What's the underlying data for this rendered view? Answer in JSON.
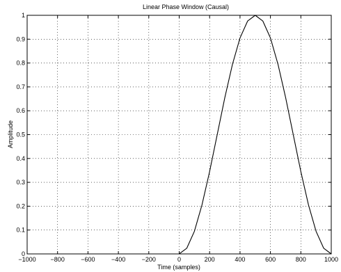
{
  "chart_data": {
    "type": "line",
    "title": "Linear Phase Window (Causal)",
    "xlabel": "Time (samples)",
    "ylabel": "Amplitude",
    "xlim": [
      -1000,
      1000
    ],
    "ylim": [
      0,
      1
    ],
    "xticks": [
      -1000,
      -800,
      -600,
      -400,
      -200,
      0,
      200,
      400,
      600,
      800,
      1000
    ],
    "yticks": [
      0,
      0.1,
      0.2,
      0.3,
      0.4,
      0.5,
      0.6,
      0.7,
      0.8,
      0.9,
      1
    ],
    "grid": true,
    "series": [
      {
        "x": [
          -1000,
          -800,
          -600,
          -400,
          -200,
          0,
          50,
          100,
          150,
          200,
          250,
          300,
          350,
          400,
          450,
          500,
          550,
          600,
          650,
          700,
          750,
          800,
          850,
          900,
          950,
          1000
        ],
        "y": [
          0,
          0,
          0,
          0,
          0,
          0,
          0.024,
          0.095,
          0.206,
          0.345,
          0.5,
          0.655,
          0.794,
          0.905,
          0.976,
          1,
          0.976,
          0.905,
          0.794,
          0.655,
          0.5,
          0.345,
          0.206,
          0.095,
          0.024,
          0
        ]
      }
    ]
  }
}
